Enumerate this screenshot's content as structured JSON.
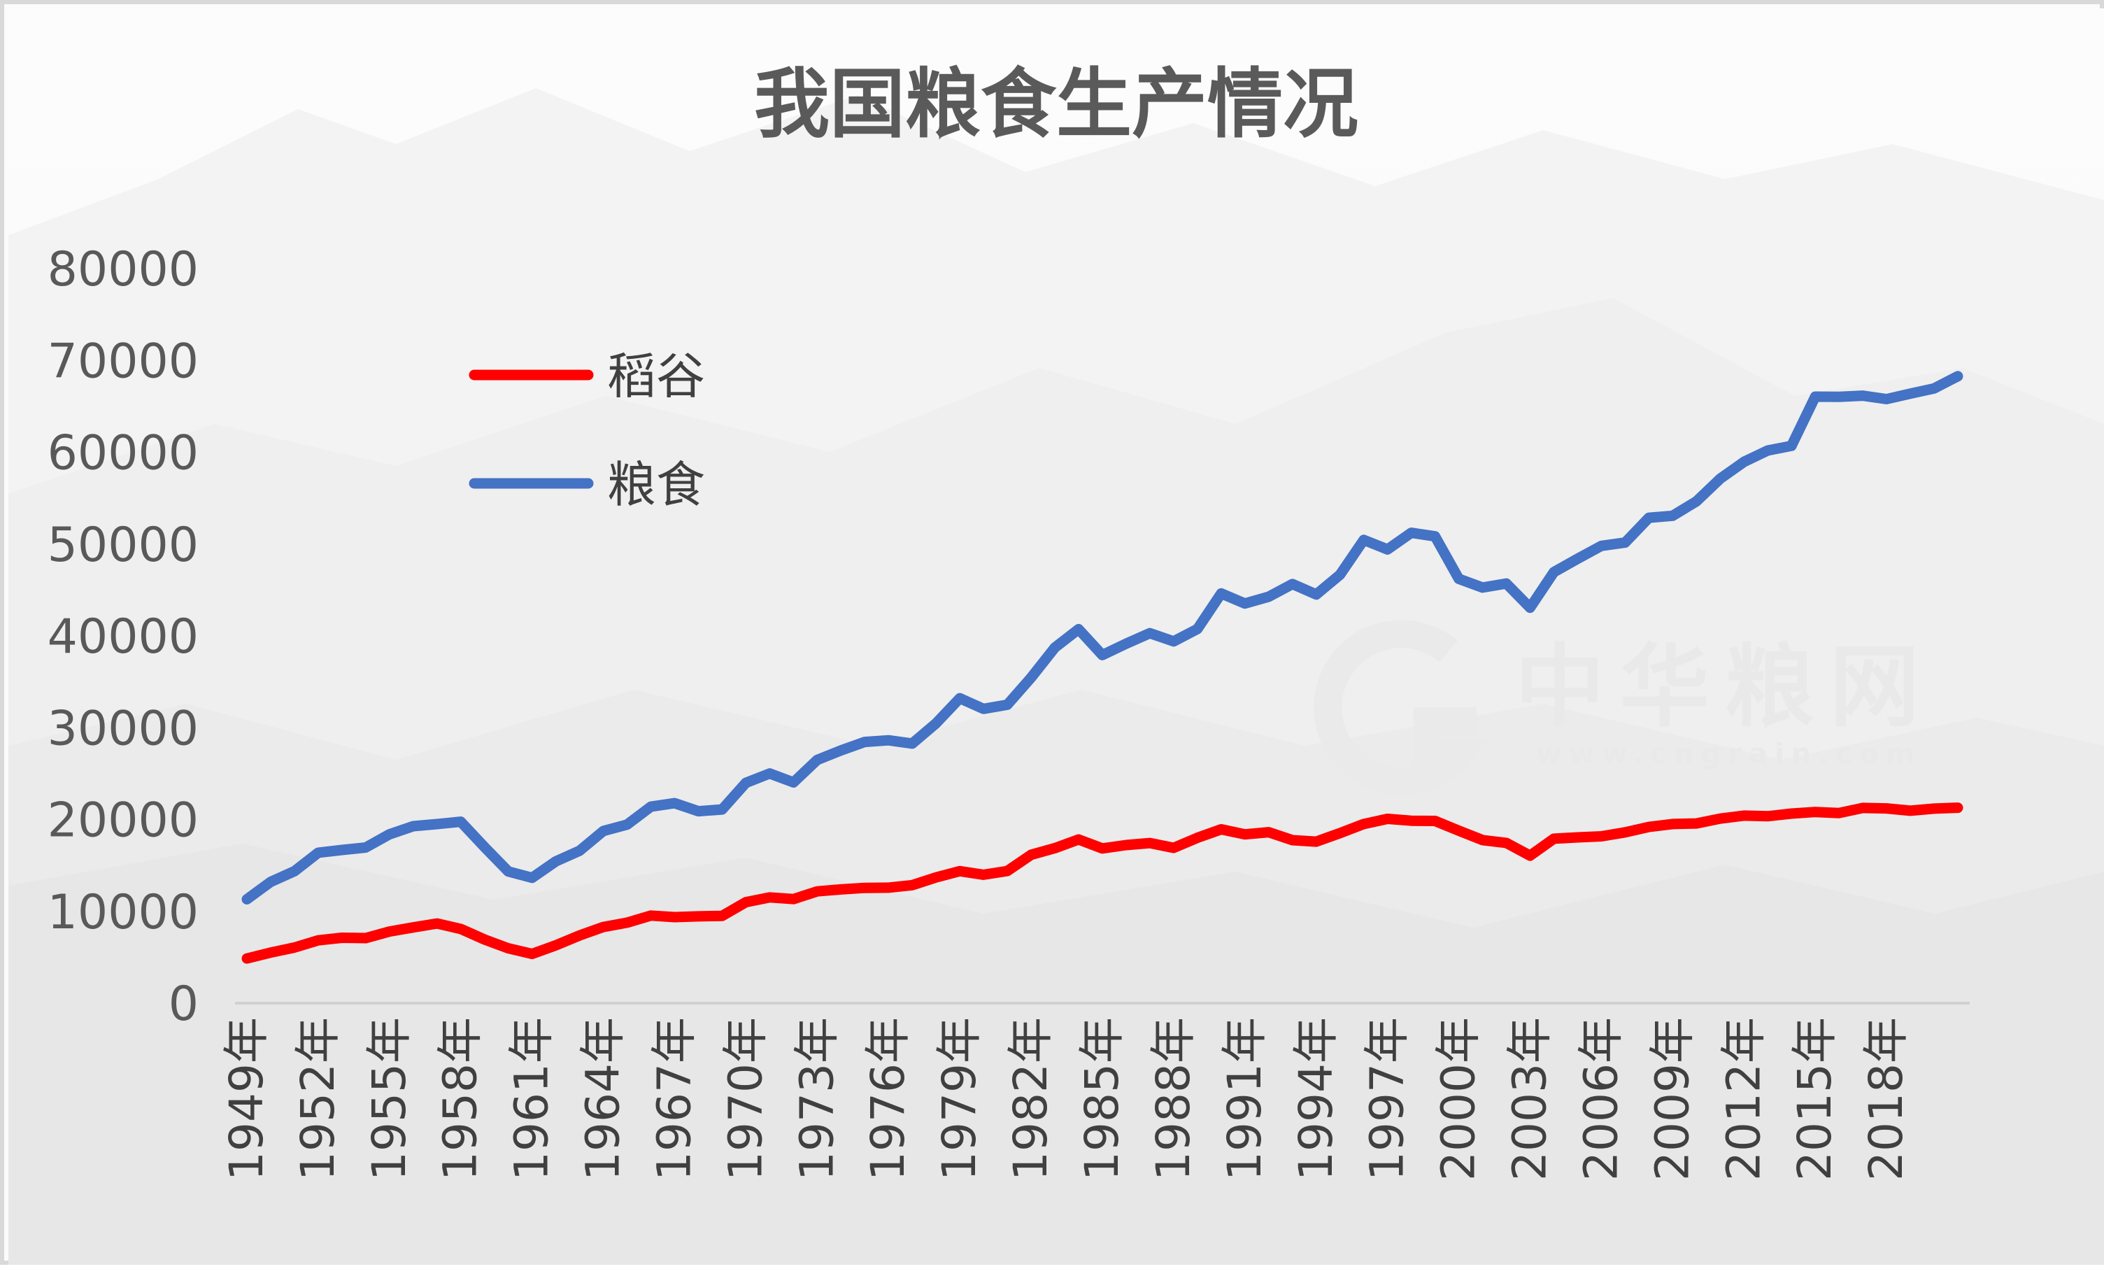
{
  "chart_data": {
    "type": "line",
    "title": "我国粮食生产情况",
    "xlabel": "",
    "ylabel": "",
    "ylim": [
      0,
      80000
    ],
    "yticks": [
      "0",
      "10000",
      "20000",
      "30000",
      "40000",
      "50000",
      "60000",
      "70000",
      "80000"
    ],
    "legend_position": "upper-left",
    "grid": false,
    "categories": [
      "1949年",
      "1950年",
      "1951年",
      "1952年",
      "1953年",
      "1954年",
      "1955年",
      "1956年",
      "1957年",
      "1958年",
      "1959年",
      "1960年",
      "1961年",
      "1962年",
      "1963年",
      "1964年",
      "1965年",
      "1966年",
      "1967年",
      "1968年",
      "1969年",
      "1970年",
      "1971年",
      "1972年",
      "1973年",
      "1974年",
      "1975年",
      "1976年",
      "1977年",
      "1978年",
      "1979年",
      "1980年",
      "1981年",
      "1982年",
      "1983年",
      "1984年",
      "1985年",
      "1986年",
      "1987年",
      "1988年",
      "1989年",
      "1990年",
      "1991年",
      "1992年",
      "1993年",
      "1994年",
      "1995年",
      "1996年",
      "1997年",
      "1998年",
      "1999年",
      "2000年",
      "2001年",
      "2002年",
      "2003年",
      "2004年",
      "2005年",
      "2006年",
      "2007年",
      "2008年",
      "2009年",
      "2010年",
      "2011年",
      "2012年",
      "2013年",
      "2014年",
      "2015年",
      "2016年",
      "2017年",
      "2018年",
      "2019年",
      "2020年",
      "2021年"
    ],
    "tick_labels": [
      "1949年",
      "1952年",
      "1955年",
      "1958年",
      "1961年",
      "1964年",
      "1967年",
      "1970年",
      "1973年",
      "1976年",
      "1979年",
      "1982年",
      "1985年",
      "1988年",
      "1991年",
      "1994年",
      "1997年",
      "2000年",
      "2003年",
      "2006年",
      "2009年",
      "2012年",
      "2015年",
      "2018年"
    ],
    "series": [
      {
        "name": "稻谷",
        "color": "#ff0000",
        "values": [
          4865,
          5510,
          6056,
          6843,
          7127,
          7085,
          7803,
          8248,
          8678,
          8085,
          6937,
          5973,
          5364,
          6299,
          7377,
          8300,
          8772,
          9539,
          9369,
          9453,
          9507,
          10999,
          11521,
          11336,
          12174,
          12391,
          12556,
          12581,
          12857,
          13693,
          14375,
          13991,
          14396,
          16160,
          16887,
          17826,
          16857,
          17222,
          17442,
          16911,
          18013,
          18933,
          18381,
          18622,
          17751,
          17593,
          18523,
          19510,
          20073,
          19871,
          19849,
          18791,
          17758,
          17454,
          16066,
          17909,
          18059,
          18172,
          18603,
          19190,
          19510,
          19576,
          20100,
          20424,
          20361,
          20651,
          20823,
          20708,
          21268,
          21213,
          20961,
          21186,
          21284
        ]
      },
      {
        "name": "粮食",
        "color": "#4472c4",
        "values": [
          11318,
          13213,
          14369,
          16392,
          16683,
          16952,
          18394,
          19275,
          19505,
          19765,
          17000,
          14350,
          13650,
          15441,
          16600,
          18750,
          19453,
          21400,
          21782,
          20906,
          21097,
          24000,
          25014,
          24048,
          26494,
          27527,
          28452,
          28631,
          28273,
          30477,
          33212,
          32056,
          32502,
          35450,
          38728,
          40731,
          37911,
          39151,
          40298,
          39408,
          40755,
          44624,
          43529,
          44266,
          45649,
          44510,
          46662,
          50454,
          49417,
          51230,
          50839,
          46218,
          45264,
          45706,
          43070,
          46947,
          48402,
          49804,
          50160,
          52871,
          53082,
          54648,
          57121,
          58958,
          60194,
          60703,
          66060,
          66044,
          66161,
          65789,
          66384,
          66949,
          68285
        ]
      }
    ]
  },
  "watermark": {
    "brand": "中华粮网",
    "url": "www.cngrain.com"
  }
}
